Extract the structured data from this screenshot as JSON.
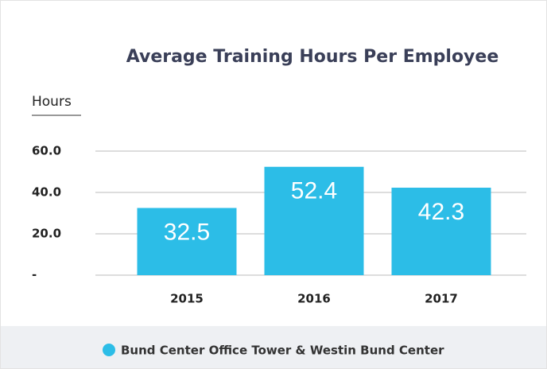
{
  "chart_data": {
    "type": "bar",
    "title": "Average Training Hours Per Employee",
    "y_label": "Hours",
    "categories": [
      "2015",
      "2016",
      "2017"
    ],
    "series": [
      {
        "name": "Bund Center Office Tower & Westin Bund Center",
        "color": "#2cbde7",
        "values": [
          32.5,
          52.4,
          42.3
        ]
      }
    ],
    "ylim": [
      0,
      80
    ],
    "yticks": [
      {
        "value": 0,
        "label": "-"
      },
      {
        "value": 20,
        "label": "20.0"
      },
      {
        "value": 40,
        "label": "40.0"
      },
      {
        "value": 60,
        "label": "60.0"
      }
    ],
    "grid": true
  }
}
